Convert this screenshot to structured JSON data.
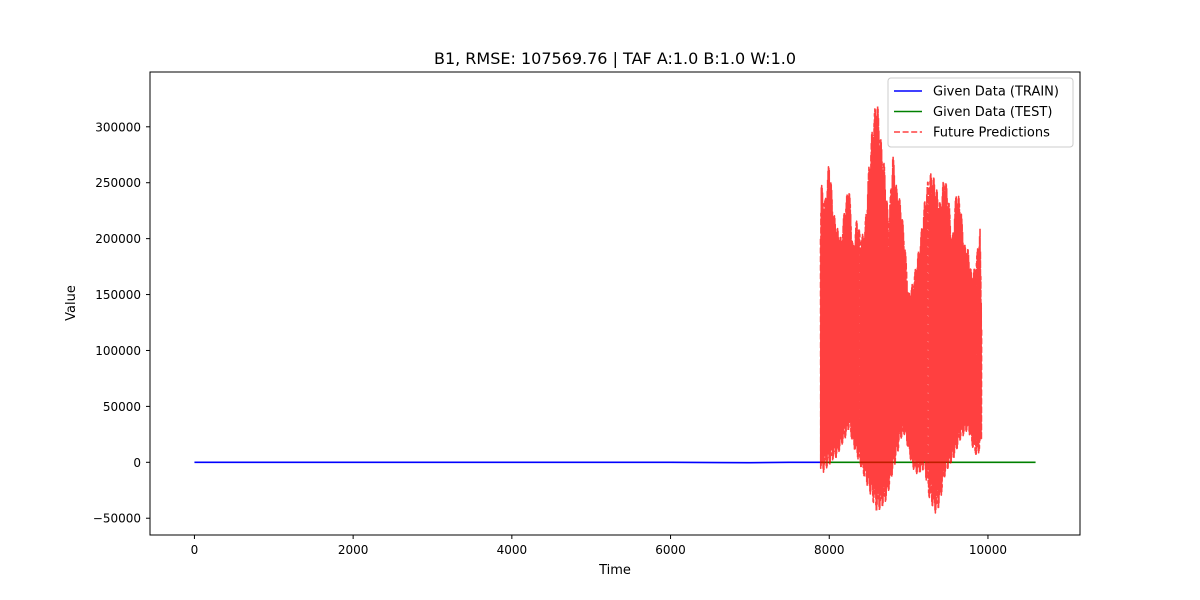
{
  "chart_data": {
    "type": "line",
    "title": "B1, RMSE: 107569.76 | TAF A:1.0 B:1.0 W:1.0",
    "xlabel": "Time",
    "ylabel": "Value",
    "xlim": [
      -560,
      11160
    ],
    "ylim": [
      -65000,
      349000
    ],
    "xticks": [
      0,
      2000,
      4000,
      6000,
      8000,
      10000
    ],
    "yticks": [
      -50000,
      0,
      50000,
      100000,
      150000,
      200000,
      250000,
      300000
    ],
    "grid": false,
    "legend_position": "top-right",
    "series": [
      {
        "name": "Given Data (TRAIN)",
        "color": "#0000ff",
        "style": "solid",
        "x": [
          0,
          1000,
          2000,
          3000,
          4000,
          5000,
          6000,
          6600,
          7000,
          7500,
          7890
        ],
        "y": [
          0,
          0,
          0,
          0,
          0,
          0,
          0,
          -200,
          -300,
          0,
          0
        ]
      },
      {
        "name": "Given Data (TEST)",
        "color": "#008000",
        "style": "solid",
        "x": [
          7890,
          8500,
          9000,
          9500,
          10000,
          10600
        ],
        "y": [
          0,
          0,
          0,
          0,
          0,
          0
        ]
      },
      {
        "name": "Future Predictions",
        "color": "#ff0000",
        "style": "dashed",
        "x": [
          7890,
          7900,
          7920,
          7950,
          8000,
          8050,
          8100,
          8150,
          8200,
          8250,
          8300,
          8350,
          8400,
          8450,
          8500,
          8550,
          8600,
          8650,
          8700,
          8750,
          8800,
          8850,
          8900,
          8950,
          9000,
          9050,
          9100,
          9150,
          9200,
          9250,
          9300,
          9350,
          9400,
          9450,
          9500,
          9550,
          9600,
          9650,
          9700,
          9750,
          9800,
          9850,
          9900,
          9920
        ],
        "upper": [
          220000,
          252000,
          240000,
          235000,
          272000,
          225000,
          210000,
          200000,
          232000,
          248000,
          192000,
          220000,
          200000,
          210000,
          265000,
          305000,
          327000,
          290000,
          262000,
          212000,
          278000,
          245000,
          232000,
          200000,
          150000,
          160000,
          178000,
          200000,
          232000,
          255000,
          260000,
          245000,
          232000,
          258000,
          240000,
          200000,
          242000,
          235000,
          195000,
          190000,
          165000,
          180000,
          210000,
          125000
        ],
        "lower": [
          -5000,
          -8000,
          -10000,
          -6000,
          -3000,
          2000,
          5000,
          15000,
          20000,
          30000,
          15000,
          5000,
          -5000,
          -15000,
          -25000,
          -35000,
          -45000,
          -42000,
          -38000,
          -25000,
          -10000,
          5000,
          20000,
          25000,
          10000,
          -5000,
          -10000,
          -10000,
          -5000,
          -30000,
          -40000,
          -47000,
          -35000,
          -15000,
          -5000,
          0,
          10000,
          20000,
          25000,
          30000,
          15000,
          5000,
          10000,
          20000
        ]
      }
    ]
  }
}
